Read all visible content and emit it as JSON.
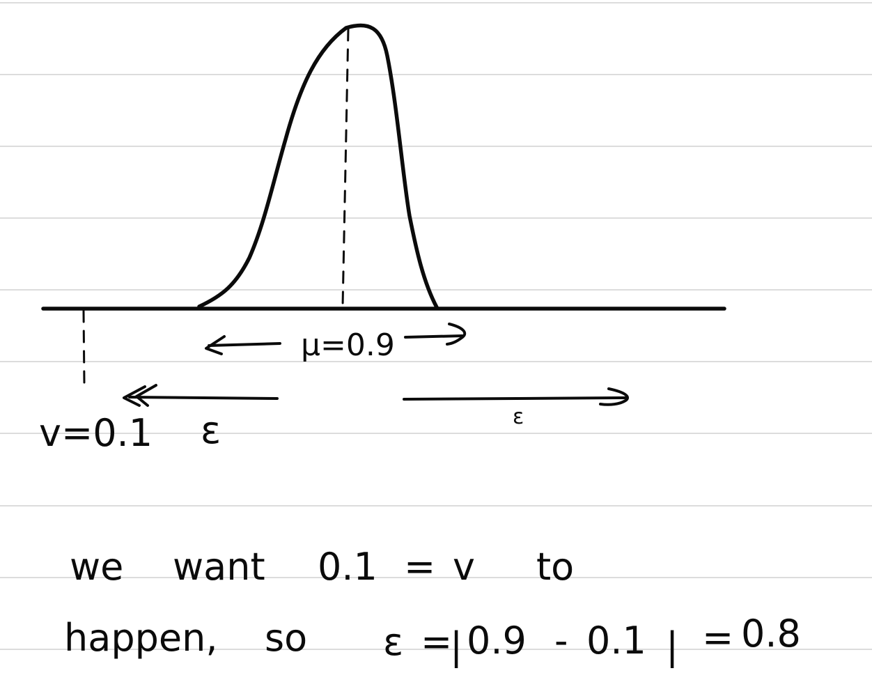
{
  "labels": {
    "mu": "μ=0.9",
    "nu": "v=0.1",
    "eps_left": "ε",
    "eps_right": "ε"
  },
  "note": {
    "line1": [
      "we",
      "want",
      "0.1",
      "=",
      "v",
      "to"
    ],
    "line2": [
      "happen,",
      "so",
      "ε",
      "=",
      "|",
      "0.9",
      "-",
      "0.1",
      "|",
      "=",
      "0.8"
    ]
  }
}
